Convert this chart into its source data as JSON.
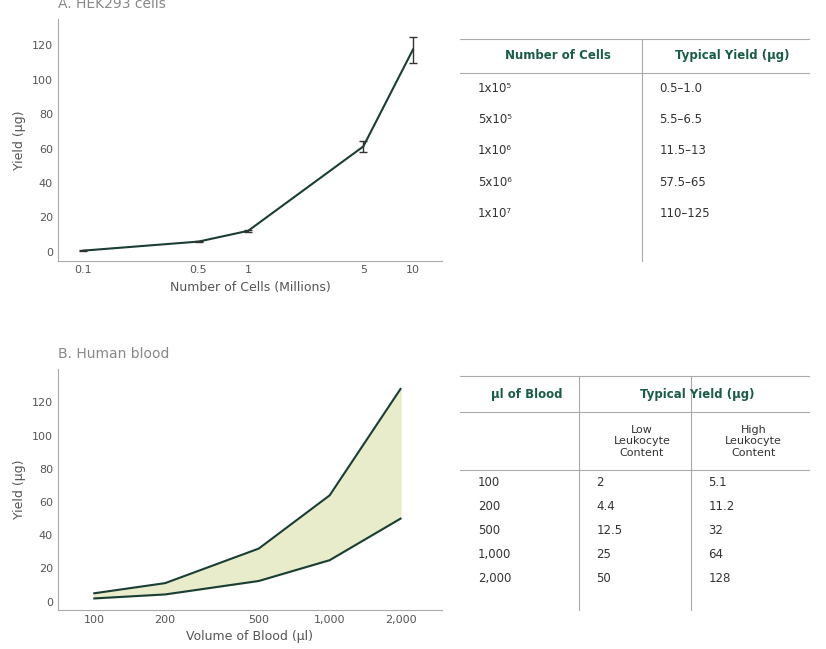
{
  "panel_a": {
    "title": "A. HEK293 cells",
    "xlabel": "Number of Cells (Millions)",
    "ylabel": "Yield (µg)",
    "x": [
      0.1,
      0.5,
      1,
      5,
      10
    ],
    "y": [
      0.75,
      6.0,
      12.25,
      61.25,
      117.5
    ],
    "yerr": [
      0.25,
      0.5,
      0.75,
      3.0,
      7.5
    ],
    "xticks": [
      0.1,
      0.5,
      1,
      5,
      10
    ],
    "xticklabels": [
      "0.1",
      "0.5",
      "1",
      "5",
      "10"
    ],
    "yticks": [
      0,
      20,
      40,
      60,
      80,
      100,
      120
    ],
    "ylim": [
      -5,
      135
    ],
    "line_color": "#1a3d35",
    "table_headers": [
      "Number of Cells",
      "Typical Yield (µg)"
    ],
    "table_rows": [
      [
        "1x10⁵",
        "0.5–1.0"
      ],
      [
        "5x10⁵",
        "5.5–6.5"
      ],
      [
        "1x10⁶",
        "11.5–13"
      ],
      [
        "5x10⁶",
        "57.5–65"
      ],
      [
        "1x10⁷",
        "110–125"
      ]
    ]
  },
  "panel_b": {
    "title": "B. Human blood",
    "xlabel": "Volume of Blood (µl)",
    "ylabel": "Yield (µg)",
    "x": [
      100,
      200,
      500,
      1000,
      2000
    ],
    "y_low": [
      2,
      4.4,
      12.5,
      25,
      50
    ],
    "y_high": [
      5.1,
      11.2,
      32,
      64,
      128
    ],
    "xticks": [
      100,
      200,
      500,
      1000,
      2000
    ],
    "xticklabels": [
      "100",
      "200",
      "500",
      "1,000",
      "2,000"
    ],
    "yticks": [
      0,
      20,
      40,
      60,
      80,
      100,
      120
    ],
    "ylim": [
      -5,
      140
    ],
    "line_color": "#1a3d35",
    "fill_color": "#e8ecca",
    "table_headers": [
      "µl of Blood",
      "Typical Yield (µg)",
      ""
    ],
    "table_subheaders": [
      "",
      "Low\nLeukocyte\nContent",
      "High\nLeukocyte\nContent"
    ],
    "table_rows": [
      [
        "100",
        "2",
        "5.1"
      ],
      [
        "200",
        "4.4",
        "11.2"
      ],
      [
        "500",
        "12.5",
        "32"
      ],
      [
        "1,000",
        "25",
        "64"
      ],
      [
        "2,000",
        "50",
        "128"
      ]
    ]
  },
  "bg_color": "#ffffff",
  "text_color": "#555555",
  "header_color": "#1a5c45",
  "title_color": "#888888"
}
